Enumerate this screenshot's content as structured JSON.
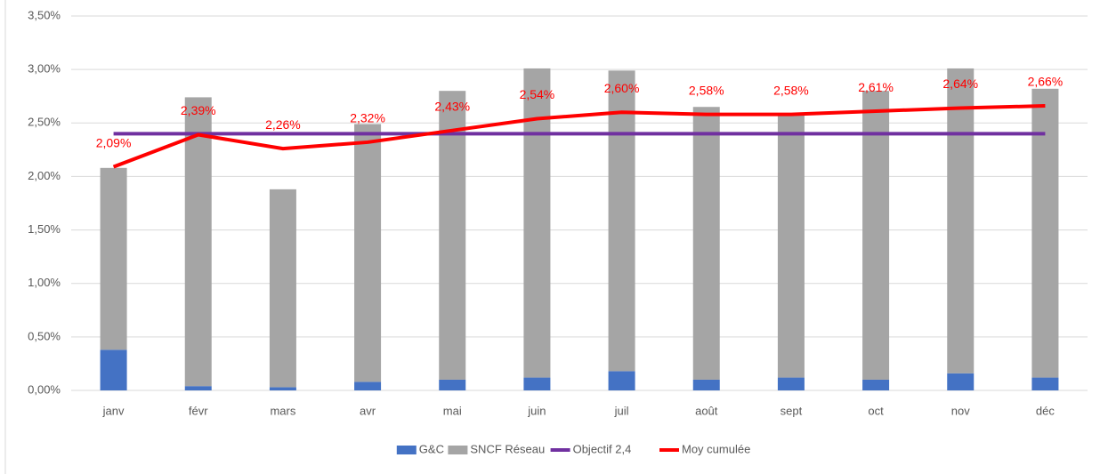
{
  "chart_data": {
    "type": "bar",
    "stacked": true,
    "categories": [
      "janv",
      "févr",
      "mars",
      "avr",
      "mai",
      "juin",
      "juil",
      "août",
      "sept",
      "oct",
      "nov",
      "déc"
    ],
    "series": [
      {
        "name": "G&C",
        "type": "bar",
        "color": "#4472c4",
        "values": [
          0.38,
          0.04,
          0.03,
          0.08,
          0.1,
          0.12,
          0.18,
          0.1,
          0.12,
          0.1,
          0.16,
          0.12
        ]
      },
      {
        "name": "SNCF Réseau",
        "type": "bar",
        "color": "#a5a5a5",
        "values": [
          1.7,
          2.7,
          1.85,
          2.41,
          2.7,
          2.89,
          2.81,
          2.55,
          2.46,
          2.7,
          2.85,
          2.7
        ]
      },
      {
        "name": "Objectif 2,4",
        "type": "line",
        "color": "#7030a0",
        "values": [
          2.4,
          2.4,
          2.4,
          2.4,
          2.4,
          2.4,
          2.4,
          2.4,
          2.4,
          2.4,
          2.4,
          2.4
        ]
      },
      {
        "name": "Moy cumulée",
        "type": "line",
        "color": "#ff0000",
        "values": [
          2.09,
          2.39,
          2.26,
          2.32,
          2.43,
          2.54,
          2.6,
          2.58,
          2.58,
          2.61,
          2.64,
          2.66
        ],
        "value_labels": [
          "2,09%",
          "2,39%",
          "2,26%",
          "2,32%",
          "2,43%",
          "2,54%",
          "2,60%",
          "2,58%",
          "2,58%",
          "2,61%",
          "2,64%",
          "2,66%"
        ]
      }
    ],
    "ylim": [
      0,
      3.5
    ],
    "yticks": [
      {
        "value": 0,
        "label": "0,00%"
      },
      {
        "value": 0.5,
        "label": "0,50%"
      },
      {
        "value": 1,
        "label": "1,00%"
      },
      {
        "value": 1.5,
        "label": "1,50%"
      },
      {
        "value": 2,
        "label": "2,00%"
      },
      {
        "value": 2.5,
        "label": "2,50%"
      },
      {
        "value": 3,
        "label": "3,00%"
      },
      {
        "value": 3.5,
        "label": "3,50%"
      }
    ],
    "grid": true,
    "legend": "bottom"
  }
}
